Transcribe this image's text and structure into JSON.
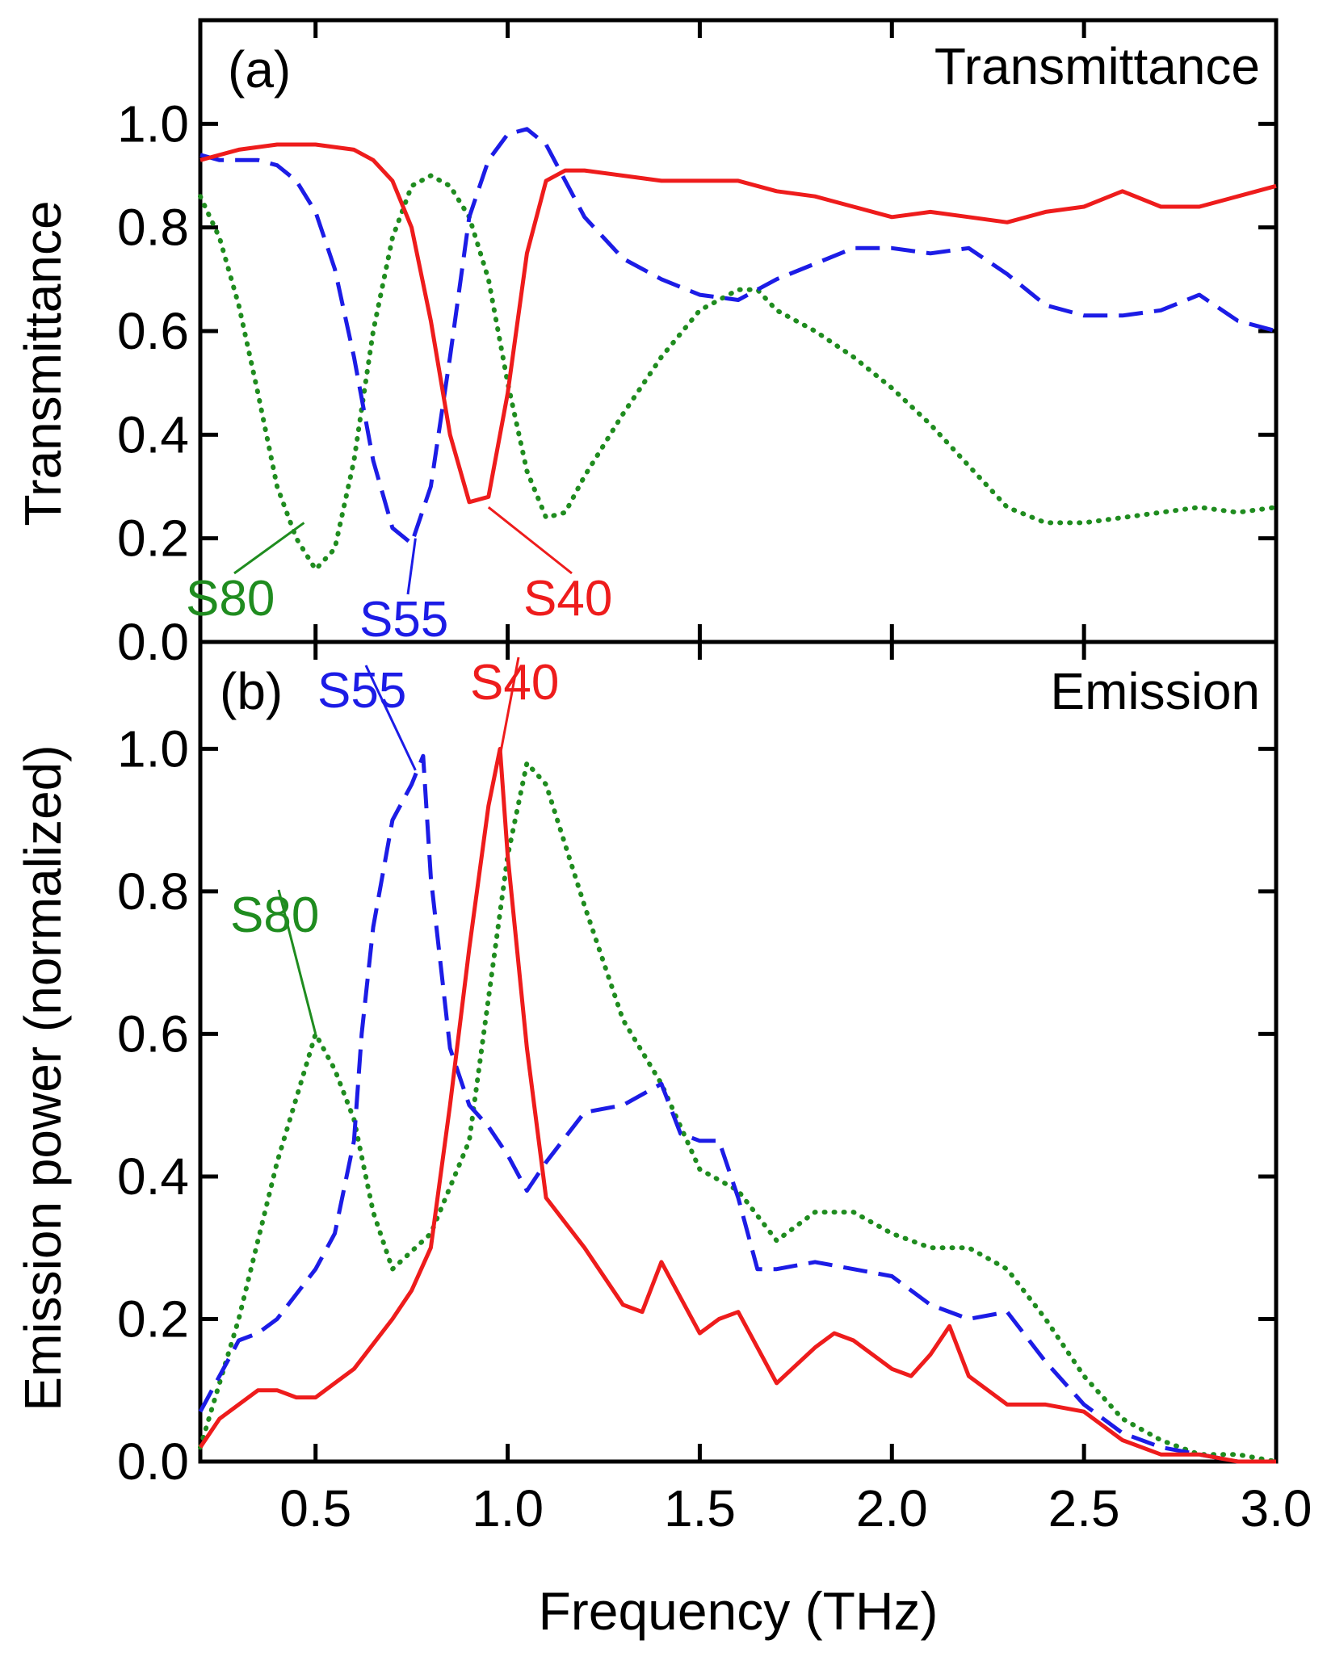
{
  "chart_data": [
    {
      "type": "line",
      "panel_label": "(a)",
      "title": "Transmittance",
      "xlabel": "",
      "ylabel": "Transmittance",
      "xlim": [
        0.2,
        3.0
      ],
      "ylim": [
        0.0,
        1.2
      ],
      "yticks": [
        "0.0",
        "0.2",
        "0.4",
        "0.6",
        "0.8",
        "1.0"
      ],
      "grid": false,
      "series": [
        {
          "name": "S80",
          "color": "#1f8c1f",
          "dash": "dotted",
          "x": [
            0.2,
            0.25,
            0.3,
            0.35,
            0.4,
            0.45,
            0.5,
            0.55,
            0.6,
            0.65,
            0.7,
            0.75,
            0.8,
            0.85,
            0.9,
            0.95,
            1.0,
            1.05,
            1.1,
            1.15,
            1.2,
            1.3,
            1.4,
            1.5,
            1.6,
            1.65,
            1.7,
            1.8,
            1.9,
            2.0,
            2.1,
            2.2,
            2.3,
            2.4,
            2.5,
            2.6,
            2.7,
            2.8,
            2.9,
            3.0
          ],
          "y": [
            0.86,
            0.78,
            0.65,
            0.48,
            0.3,
            0.2,
            0.14,
            0.18,
            0.35,
            0.6,
            0.78,
            0.88,
            0.9,
            0.88,
            0.82,
            0.7,
            0.5,
            0.33,
            0.24,
            0.25,
            0.32,
            0.44,
            0.55,
            0.64,
            0.68,
            0.68,
            0.64,
            0.6,
            0.55,
            0.49,
            0.42,
            0.34,
            0.26,
            0.23,
            0.23,
            0.24,
            0.25,
            0.26,
            0.25,
            0.26
          ]
        },
        {
          "name": "S55",
          "color": "#1c1ce6",
          "dash": "dashed",
          "x": [
            0.2,
            0.25,
            0.3,
            0.35,
            0.4,
            0.45,
            0.5,
            0.55,
            0.6,
            0.65,
            0.7,
            0.75,
            0.8,
            0.85,
            0.9,
            0.95,
            1.0,
            1.05,
            1.1,
            1.15,
            1.2,
            1.3,
            1.4,
            1.5,
            1.6,
            1.7,
            1.8,
            1.9,
            2.0,
            2.1,
            2.2,
            2.3,
            2.4,
            2.5,
            2.6,
            2.7,
            2.8,
            2.9,
            3.0
          ],
          "y": [
            0.94,
            0.93,
            0.93,
            0.93,
            0.92,
            0.89,
            0.83,
            0.72,
            0.55,
            0.35,
            0.22,
            0.19,
            0.3,
            0.55,
            0.82,
            0.93,
            0.98,
            0.99,
            0.96,
            0.89,
            0.82,
            0.74,
            0.7,
            0.67,
            0.66,
            0.7,
            0.73,
            0.76,
            0.76,
            0.75,
            0.76,
            0.71,
            0.65,
            0.63,
            0.63,
            0.64,
            0.67,
            0.62,
            0.6
          ]
        },
        {
          "name": "S40",
          "color": "#ee1c1c",
          "dash": "solid",
          "x": [
            0.2,
            0.3,
            0.4,
            0.5,
            0.6,
            0.65,
            0.7,
            0.75,
            0.8,
            0.85,
            0.9,
            0.95,
            1.0,
            1.05,
            1.1,
            1.15,
            1.2,
            1.3,
            1.4,
            1.5,
            1.6,
            1.7,
            1.8,
            1.9,
            2.0,
            2.1,
            2.2,
            2.3,
            2.4,
            2.5,
            2.6,
            2.7,
            2.8,
            2.9,
            3.0
          ],
          "y": [
            0.93,
            0.95,
            0.96,
            0.96,
            0.95,
            0.93,
            0.89,
            0.8,
            0.62,
            0.4,
            0.27,
            0.28,
            0.48,
            0.75,
            0.89,
            0.91,
            0.91,
            0.9,
            0.89,
            0.89,
            0.89,
            0.87,
            0.86,
            0.84,
            0.82,
            0.83,
            0.82,
            0.81,
            0.83,
            0.84,
            0.87,
            0.84,
            0.84,
            0.86,
            0.88
          ]
        }
      ],
      "annotations": [
        {
          "text": "S80",
          "series": "S80",
          "point": [
            0.47,
            0.23
          ]
        },
        {
          "text": "S55",
          "series": "S55",
          "point": [
            0.76,
            0.2
          ]
        },
        {
          "text": "S40",
          "series": "S40",
          "point": [
            0.95,
            0.26
          ]
        }
      ]
    },
    {
      "type": "line",
      "panel_label": "(b)",
      "title": "Emission",
      "xlabel": "Frequency (THz)",
      "ylabel": "Emission power (normalized)",
      "xlim": [
        0.2,
        3.0
      ],
      "ylim": [
        0.0,
        1.15
      ],
      "xticks": [
        "0.5",
        "1.0",
        "1.5",
        "2.0",
        "2.5",
        "3.0"
      ],
      "yticks": [
        "0.0",
        "0.2",
        "0.4",
        "0.6",
        "0.8",
        "1.0"
      ],
      "grid": false,
      "series": [
        {
          "name": "S80",
          "color": "#1f8c1f",
          "dash": "dotted",
          "x": [
            0.2,
            0.3,
            0.4,
            0.5,
            0.55,
            0.6,
            0.65,
            0.7,
            0.8,
            0.9,
            1.0,
            1.05,
            1.1,
            1.2,
            1.3,
            1.4,
            1.5,
            1.6,
            1.7,
            1.8,
            1.9,
            2.0,
            2.1,
            2.2,
            2.3,
            2.4,
            2.5,
            2.6,
            2.7,
            2.8,
            2.9,
            3.0
          ],
          "y": [
            0.02,
            0.2,
            0.42,
            0.6,
            0.55,
            0.48,
            0.35,
            0.27,
            0.32,
            0.45,
            0.85,
            0.98,
            0.95,
            0.78,
            0.62,
            0.53,
            0.41,
            0.38,
            0.31,
            0.35,
            0.35,
            0.32,
            0.3,
            0.3,
            0.27,
            0.2,
            0.12,
            0.06,
            0.03,
            0.01,
            0.01,
            0.0
          ]
        },
        {
          "name": "S55",
          "color": "#1c1ce6",
          "dash": "dashed",
          "x": [
            0.2,
            0.3,
            0.35,
            0.4,
            0.5,
            0.55,
            0.6,
            0.62,
            0.65,
            0.7,
            0.75,
            0.78,
            0.8,
            0.85,
            0.9,
            0.95,
            1.0,
            1.05,
            1.1,
            1.2,
            1.3,
            1.4,
            1.45,
            1.5,
            1.55,
            1.6,
            1.65,
            1.7,
            1.8,
            1.9,
            2.0,
            2.1,
            2.2,
            2.3,
            2.4,
            2.5,
            2.6,
            2.7,
            2.8,
            2.9,
            3.0
          ],
          "y": [
            0.07,
            0.17,
            0.18,
            0.2,
            0.27,
            0.32,
            0.45,
            0.6,
            0.75,
            0.9,
            0.95,
            0.99,
            0.82,
            0.58,
            0.5,
            0.47,
            0.43,
            0.38,
            0.42,
            0.49,
            0.5,
            0.53,
            0.46,
            0.45,
            0.45,
            0.37,
            0.27,
            0.27,
            0.28,
            0.27,
            0.26,
            0.22,
            0.2,
            0.21,
            0.14,
            0.08,
            0.04,
            0.02,
            0.01,
            0.0,
            0.0
          ]
        },
        {
          "name": "S40",
          "color": "#ee1c1c",
          "dash": "solid",
          "x": [
            0.2,
            0.25,
            0.3,
            0.35,
            0.4,
            0.45,
            0.5,
            0.55,
            0.6,
            0.7,
            0.75,
            0.8,
            0.85,
            0.9,
            0.95,
            0.98,
            1.0,
            1.05,
            1.1,
            1.2,
            1.3,
            1.35,
            1.4,
            1.45,
            1.5,
            1.55,
            1.6,
            1.65,
            1.7,
            1.8,
            1.85,
            1.9,
            2.0,
            2.05,
            2.1,
            2.15,
            2.2,
            2.3,
            2.4,
            2.5,
            2.6,
            2.7,
            2.8,
            2.9,
            3.0
          ],
          "y": [
            0.02,
            0.06,
            0.08,
            0.1,
            0.1,
            0.09,
            0.09,
            0.11,
            0.13,
            0.2,
            0.24,
            0.3,
            0.5,
            0.72,
            0.92,
            1.0,
            0.85,
            0.58,
            0.37,
            0.3,
            0.22,
            0.21,
            0.28,
            0.23,
            0.18,
            0.2,
            0.21,
            0.16,
            0.11,
            0.16,
            0.18,
            0.17,
            0.13,
            0.12,
            0.15,
            0.19,
            0.12,
            0.08,
            0.08,
            0.07,
            0.03,
            0.01,
            0.01,
            0.0,
            0.0
          ]
        }
      ],
      "annotations": [
        {
          "text": "S80",
          "series": "S80",
          "point": [
            0.5,
            0.6
          ]
        },
        {
          "text": "S55",
          "series": "S55",
          "point": [
            0.76,
            0.97
          ]
        },
        {
          "text": "S40",
          "series": "S40",
          "point": [
            0.98,
            0.99
          ]
        }
      ]
    }
  ]
}
